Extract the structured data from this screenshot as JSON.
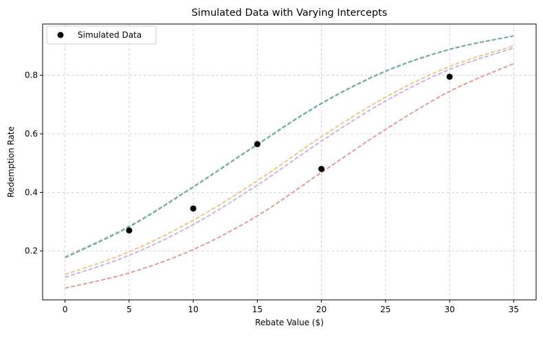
{
  "chart_data": {
    "type": "line",
    "title": "Simulated Data with Varying Intercepts",
    "xlabel": "Rebate Value ($)",
    "ylabel": "Redemption Rate",
    "xlim": [
      -1.75,
      36.75
    ],
    "ylim": [
      0.033,
      0.975
    ],
    "x_ticks": [
      0,
      5,
      10,
      15,
      20,
      25,
      30,
      35
    ],
    "y_ticks": [
      0.2,
      0.4,
      0.6,
      0.8
    ],
    "grid": true,
    "legend_position": "top-left",
    "legend": [
      "Simulated Data"
    ],
    "scatter": {
      "name": "Simulated Data",
      "color": "#000000",
      "x": [
        5,
        10,
        15,
        20,
        30
      ],
      "y": [
        0.27,
        0.345,
        0.565,
        0.48,
        0.795
      ]
    },
    "series": [
      {
        "color": "#9cc7a6",
        "x": [
          0,
          5,
          10,
          15,
          20,
          25,
          30,
          35
        ],
        "y": [
          0.18,
          0.285,
          0.42,
          0.565,
          0.705,
          0.815,
          0.889,
          0.935
        ]
      },
      {
        "color": "#6aad90",
        "x": [
          0,
          5,
          10,
          15,
          20,
          25,
          30,
          35
        ],
        "y": [
          0.177,
          0.282,
          0.418,
          0.563,
          0.703,
          0.813,
          0.888,
          0.934
        ]
      },
      {
        "color": "#f5bd7d",
        "x": [
          0,
          5,
          10,
          15,
          20,
          25,
          30,
          35
        ],
        "y": [
          0.12,
          0.197,
          0.305,
          0.44,
          0.59,
          0.725,
          0.83,
          0.9
        ]
      },
      {
        "color": "#c4aae8",
        "x": [
          0,
          5,
          10,
          15,
          20,
          25,
          30,
          35
        ],
        "y": [
          0.11,
          0.185,
          0.29,
          0.425,
          0.575,
          0.712,
          0.82,
          0.893
        ]
      },
      {
        "color": "#e8918a",
        "x": [
          0,
          5,
          10,
          15,
          20,
          25,
          30,
          35
        ],
        "y": [
          0.073,
          0.125,
          0.205,
          0.32,
          0.468,
          0.615,
          0.745,
          0.84
        ]
      }
    ]
  }
}
